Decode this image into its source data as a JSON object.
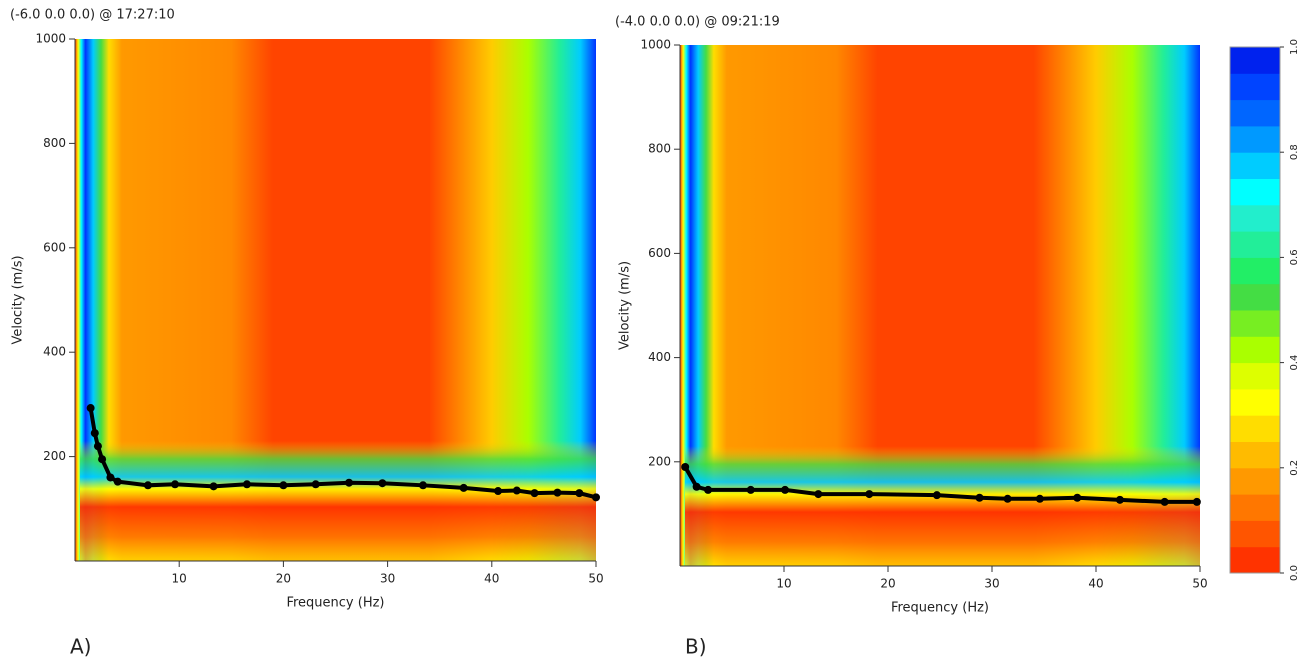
{
  "chart_data": [
    {
      "type": "line",
      "title": "(-6.0 0.0 0.0) @ 17:27:10",
      "x_label": "Frequency (Hz)",
      "y_label": "Velocity (m/s)",
      "panel_label": "A)",
      "x": [
        1.5,
        1.9,
        2.2,
        2.6,
        3.4,
        4.1,
        7.0,
        9.6,
        13.3,
        16.5,
        20.0,
        23.1,
        26.3,
        29.5,
        33.4,
        37.3,
        40.6,
        42.4,
        44.1,
        46.3,
        48.4,
        50
      ],
      "values": [
        293,
        245,
        220,
        195,
        160,
        152,
        145,
        147,
        143,
        147,
        145,
        147,
        150,
        149,
        145,
        140,
        134,
        135,
        130,
        131,
        130,
        122
      ],
      "color": "#000000",
      "xlim": [
        0,
        50
      ],
      "ylim": [
        0,
        1000
      ],
      "xticks": [
        10,
        20,
        30,
        40,
        50
      ],
      "yticks": [
        200,
        400,
        600,
        800,
        1000
      ]
    },
    {
      "type": "line",
      "title": "(-4.0 0.0 0.0) @ 09:21:19",
      "x_label": "Frequency (Hz)",
      "y_label": "Velocity (m/s)",
      "panel_label": "B)",
      "x": [
        0.5,
        1.6,
        2.7,
        6.8,
        10.1,
        13.3,
        18.2,
        24.7,
        28.8,
        31.5,
        34.6,
        38.2,
        42.3,
        46.6,
        49.7
      ],
      "values": [
        190,
        152,
        146,
        146,
        146,
        138,
        138,
        136,
        131,
        129,
        129,
        131,
        127,
        123,
        123
      ],
      "color": "#000000",
      "xlim": [
        0,
        50
      ],
      "ylim": [
        0,
        1000
      ],
      "xticks": [
        10,
        20,
        30,
        40,
        50
      ],
      "yticks": [
        200,
        400,
        600,
        800,
        1000
      ]
    },
    {
      "type": "colorbar",
      "colors": [
        "#ff3300",
        "#ff5500",
        "#ff7700",
        "#ff9900",
        "#ffbb00",
        "#ffdd00",
        "#ffff00",
        "#ddff00",
        "#aaff00",
        "#77ee22",
        "#44dd44",
        "#22ee66",
        "#22ee99",
        "#22eecc",
        "#00ffff",
        "#00ccff",
        "#0099ff",
        "#0066ff",
        "#0044ff",
        "#0022ee"
      ],
      "ylim": [
        0,
        1
      ],
      "yticks": [
        {
          "value": 0,
          "label": "0.0"
        },
        0.2,
        0.4,
        0.6,
        0.8,
        {
          "value": 1,
          "label": "1.0"
        }
      ]
    }
  ]
}
